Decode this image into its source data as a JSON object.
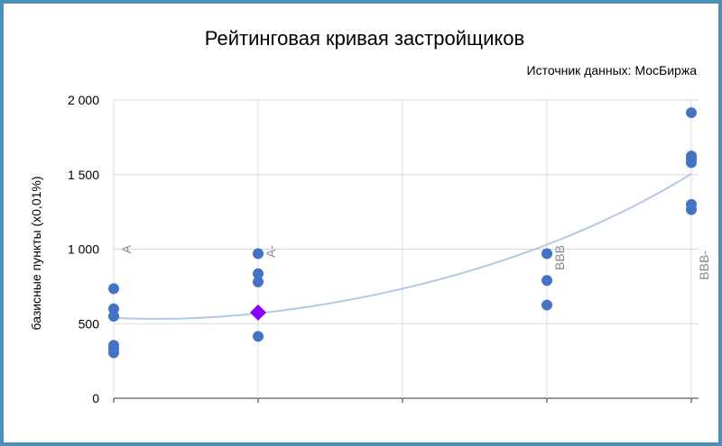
{
  "chart_data": {
    "type": "scatter",
    "title": "Рейтинговая кривая застройщиков",
    "subtitle": "Источник данных: МосБиржа",
    "xlabel": "",
    "ylabel": "базисные пункты (х0,01%)",
    "ylim": [
      0,
      2000
    ],
    "y_ticks": [
      0,
      500,
      1000,
      1500,
      2000
    ],
    "y_tick_labels": [
      "0",
      "500",
      "1 000",
      "1 500",
      "2 000"
    ],
    "x_range": [
      0,
      4
    ],
    "categories": [
      {
        "label": "A",
        "x": 0
      },
      {
        "label": "A-",
        "x": 1
      },
      {
        "label": "",
        "x": 2
      },
      {
        "label": "BBB",
        "x": 3
      },
      {
        "label": "BBB-",
        "x": 4
      }
    ],
    "grid": true,
    "points": [
      {
        "x": 0,
        "y": 735
      },
      {
        "x": 0,
        "y": 600
      },
      {
        "x": 0,
        "y": 550
      },
      {
        "x": 0,
        "y": 355
      },
      {
        "x": 0,
        "y": 330
      },
      {
        "x": 0,
        "y": 305
      },
      {
        "x": 1,
        "y": 970
      },
      {
        "x": 1,
        "y": 835
      },
      {
        "x": 1,
        "y": 780
      },
      {
        "x": 1,
        "y": 415
      },
      {
        "x": 3,
        "y": 970
      },
      {
        "x": 3,
        "y": 790
      },
      {
        "x": 3,
        "y": 625
      },
      {
        "x": 4,
        "y": 1915
      },
      {
        "x": 4,
        "y": 1625
      },
      {
        "x": 4,
        "y": 1605
      },
      {
        "x": 4,
        "y": 1580
      },
      {
        "x": 4,
        "y": 1300
      },
      {
        "x": 4,
        "y": 1265
      }
    ],
    "highlight": {
      "x": 1,
      "y": 575
    },
    "trend": {
      "type": "polynomial",
      "x": [
        0,
        1,
        2,
        3,
        4
      ],
      "y": [
        540,
        570,
        735,
        1030,
        1505
      ]
    },
    "colors": {
      "points": "#4472c4",
      "highlight": "#8b00ff",
      "trend": "#b3c7e6",
      "grid": "#d9d9d9",
      "axis": "#333333",
      "category_label": "#888888"
    }
  }
}
